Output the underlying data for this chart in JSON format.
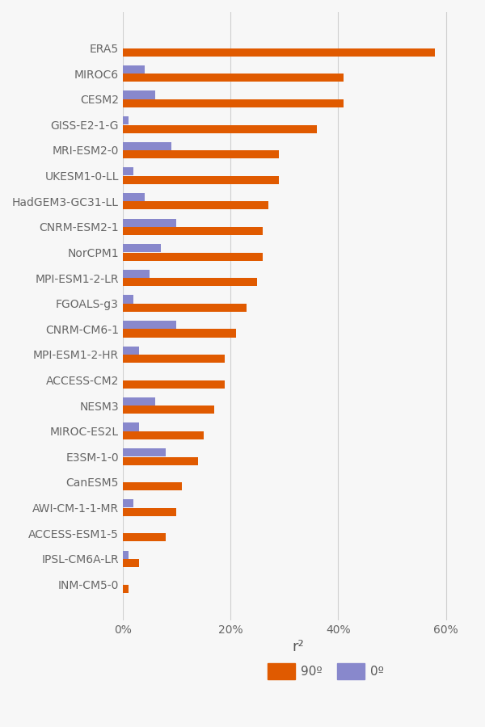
{
  "models": [
    "ERA5",
    "MIROC6",
    "CESM2",
    "GISS-E2-1-G",
    "MRI-ESM2-0",
    "UKESM1-0-LL",
    "HadGEM3-GC31-LL",
    "CNRM-ESM2-1",
    "NorCPM1",
    "MPI-ESM1-2-LR",
    "FGOALS-g3",
    "CNRM-CM6-1",
    "MPI-ESM1-2-HR",
    "ACCESS-CM2",
    "NESM3",
    "MIROC-ES2L",
    "E3SM-1-0",
    "CanESM5",
    "AWI-CM-1-1-MR",
    "ACCESS-ESM1-5",
    "IPSL-CM6A-LR",
    "INM-CM5-0"
  ],
  "val_90": [
    0.58,
    0.41,
    0.41,
    0.36,
    0.29,
    0.29,
    0.27,
    0.26,
    0.26,
    0.25,
    0.23,
    0.21,
    0.19,
    0.19,
    0.17,
    0.15,
    0.14,
    0.11,
    0.1,
    0.08,
    0.03,
    0.01
  ],
  "val_0": [
    0.0,
    0.04,
    0.06,
    0.01,
    0.09,
    0.02,
    0.04,
    0.1,
    0.07,
    0.05,
    0.02,
    0.1,
    0.03,
    0.0,
    0.06,
    0.03,
    0.08,
    0.0,
    0.02,
    0.0,
    0.01,
    0.0
  ],
  "color_90": "#e05a00",
  "color_0": "#8888cc",
  "background_color": "#f7f7f7",
  "xlabel": "r²",
  "legend_90": "90º",
  "legend_0": "0º",
  "xlim": [
    0,
    0.65
  ],
  "xticks": [
    0.0,
    0.2,
    0.4,
    0.6
  ],
  "xticklabels": [
    "0%",
    "20%",
    "40%",
    "60%"
  ]
}
